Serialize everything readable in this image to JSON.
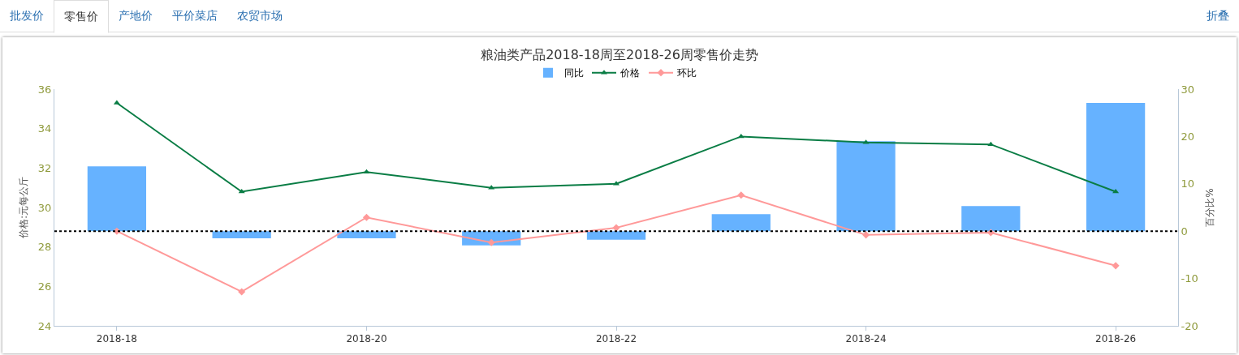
{
  "chart_data": {
    "type": "bar",
    "title": "粮油类产品2018-18周至2018-26周零售价走势",
    "ylabel": "价格:元每公斤",
    "y2label": "百分比%",
    "annotations": [
      "批发价",
      "零售价",
      "产地价",
      "平价菜店",
      "农贸市场",
      "折叠"
    ],
    "categories": [
      "2018-18",
      null,
      "2018-20",
      null,
      "2018-22",
      null,
      "2018-24",
      null,
      "2018-26"
    ],
    "series": [
      {
        "name": "同比",
        "axis": "y2",
        "color": "#66b2ff",
        "values": [
          13.7,
          -1.5,
          -1.5,
          -3.0,
          -1.8,
          3.6,
          19.0,
          5.3,
          27.1
        ]
      },
      {
        "name": "价格",
        "type": "line",
        "color": "#0a7d45",
        "marker": "triangle",
        "values": [
          35.3,
          30.8,
          31.8,
          31.0,
          31.2,
          33.6,
          33.3,
          33.2,
          30.8
        ]
      },
      {
        "name": "环比",
        "type": "line",
        "axis": "y2",
        "color": "#ff9999",
        "marker": "diamond",
        "values": [
          0,
          -12.8,
          2.9,
          -2.4,
          0.7,
          7.6,
          -0.8,
          -0.3,
          -7.3
        ]
      }
    ],
    "ylim": [
      24,
      36
    ],
    "yticks": [
      24,
      26,
      28,
      30,
      32,
      34,
      36
    ],
    "y2lim": [
      -20,
      30
    ],
    "y2ticks": [
      -20,
      -10,
      0,
      10,
      20,
      30
    ],
    "ref_lines": [
      {
        "axis": "y2",
        "value": 0,
        "color": "#000000",
        "line_style": "dotted"
      }
    ],
    "legend": "top"
  }
}
